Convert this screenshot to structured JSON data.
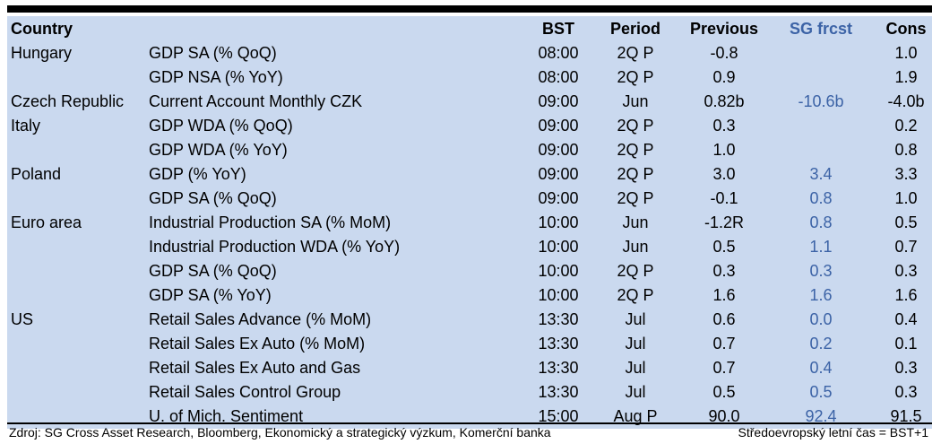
{
  "table": {
    "headers": {
      "country": "Country",
      "indicator": "",
      "bst": "BST",
      "period": "Period",
      "previous": "Previous",
      "sg_frcst": "SG frcst",
      "cons": "Cons"
    },
    "rows": [
      {
        "country": "Hungary",
        "indicator": "GDP SA (% QoQ)",
        "bst": "08:00",
        "period": "2Q P",
        "previous": "-0.8",
        "sg": "",
        "cons": "1.0"
      },
      {
        "country": "",
        "indicator": "GDP NSA (% YoY)",
        "bst": "08:00",
        "period": "2Q P",
        "previous": "0.9",
        "sg": "",
        "cons": "1.9"
      },
      {
        "country": "Czech Republic",
        "indicator": "Current Account Monthly CZK",
        "bst": "09:00",
        "period": "Jun",
        "previous": "0.82b",
        "sg": "-10.6b",
        "cons": "-4.0b"
      },
      {
        "country": "Italy",
        "indicator": "GDP WDA (% QoQ)",
        "bst": "09:00",
        "period": "2Q P",
        "previous": "0.3",
        "sg": "",
        "cons": "0.2"
      },
      {
        "country": "",
        "indicator": "GDP WDA (% YoY)",
        "bst": "09:00",
        "period": "2Q P",
        "previous": "1.0",
        "sg": "",
        "cons": "0.8"
      },
      {
        "country": "Poland",
        "indicator": "GDP (% YoY)",
        "bst": "09:00",
        "period": "2Q P",
        "previous": "3.0",
        "sg": "3.4",
        "cons": "3.3"
      },
      {
        "country": "",
        "indicator": "GDP SA (% QoQ)",
        "bst": "09:00",
        "period": "2Q P",
        "previous": "-0.1",
        "sg": "0.8",
        "cons": "1.0"
      },
      {
        "country": "Euro area",
        "indicator": "Industrial Production SA (% MoM)",
        "bst": "10:00",
        "period": "Jun",
        "previous": "-1.2R",
        "sg": "0.8",
        "cons": "0.5"
      },
      {
        "country": "",
        "indicator": "Industrial Production WDA (% YoY)",
        "bst": "10:00",
        "period": "Jun",
        "previous": "0.5",
        "sg": "1.1",
        "cons": "0.7"
      },
      {
        "country": "",
        "indicator": "GDP SA (% QoQ)",
        "bst": "10:00",
        "period": "2Q P",
        "previous": "0.3",
        "sg": "0.3",
        "cons": "0.3"
      },
      {
        "country": "",
        "indicator": "GDP SA (% YoY)",
        "bst": "10:00",
        "period": "2Q P",
        "previous": "1.6",
        "sg": "1.6",
        "cons": "1.6"
      },
      {
        "country": "US",
        "indicator": "Retail Sales Advance (% MoM)",
        "bst": "13:30",
        "period": "Jul",
        "previous": "0.6",
        "sg": "0.0",
        "cons": "0.4"
      },
      {
        "country": "",
        "indicator": "Retail Sales Ex Auto (% MoM)",
        "bst": "13:30",
        "period": "Jul",
        "previous": "0.7",
        "sg": "0.2",
        "cons": "0.1"
      },
      {
        "country": "",
        "indicator": "Retail Sales Ex Auto and Gas",
        "bst": "13:30",
        "period": "Jul",
        "previous": "0.7",
        "sg": "0.4",
        "cons": "0.3"
      },
      {
        "country": "",
        "indicator": "Retail Sales Control Group",
        "bst": "13:30",
        "period": "Jul",
        "previous": "0.5",
        "sg": "0.5",
        "cons": "0.3"
      },
      {
        "country": "",
        "indicator": "U. of Mich. Sentiment",
        "bst": "15:00",
        "period": "Aug P",
        "previous": "90.0",
        "sg": "92.4",
        "cons": "91.5"
      }
    ]
  },
  "footer": {
    "source": "Zdroj: SG Cross Asset Research, Bloomberg, Ekonomický a strategický výzkum, Komerční banka",
    "timezone_note": "Středoevropský letní čas = BST+1"
  },
  "colors": {
    "table_background": "#cad9ef",
    "sg_forecast_text": "#3c63a6",
    "rule": "#000000"
  }
}
